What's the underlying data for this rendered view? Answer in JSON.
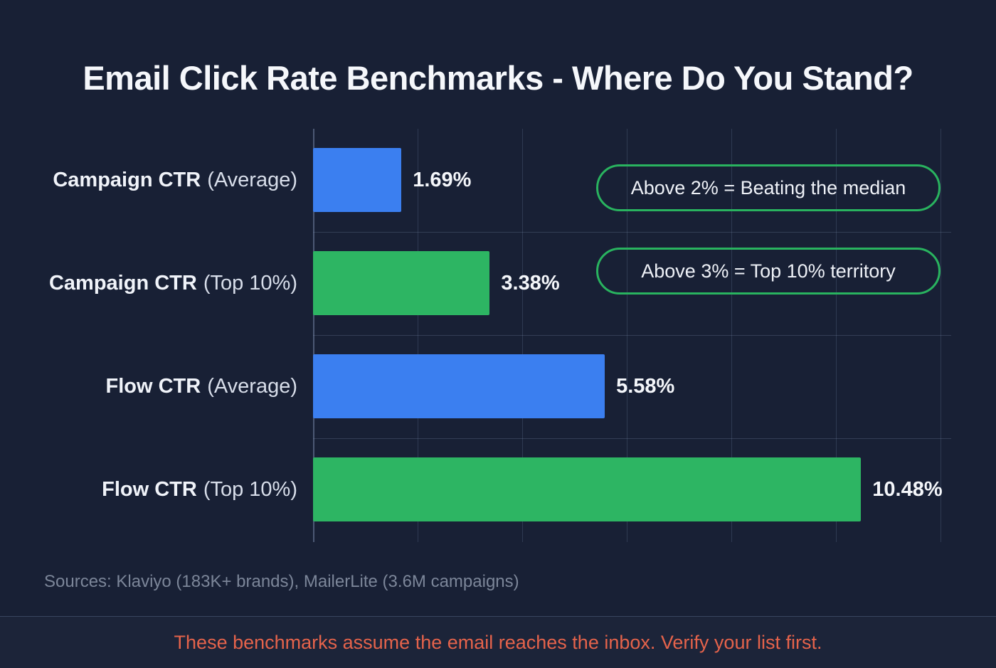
{
  "title": "Email Click Rate Benchmarks - Where Do You Stand?",
  "chart_data": {
    "type": "bar",
    "orientation": "horizontal",
    "title": "Email Click Rate Benchmarks - Where Do You Stand?",
    "categories": [
      "Campaign CTR (Average)",
      "Campaign CTR (Top 10%)",
      "Flow CTR (Average)",
      "Flow CTR (Top 10%)"
    ],
    "values": [
      1.69,
      3.38,
      5.58,
      10.48
    ],
    "value_labels": [
      "1.69%",
      "3.38%",
      "5.58%",
      "10.48%"
    ],
    "bar_colors": [
      "#3b7ff0",
      "#2db563",
      "#3b7ff0",
      "#2db563"
    ],
    "xlabel": "",
    "ylabel": "",
    "xlim": [
      0,
      12
    ],
    "gridline_step": 2,
    "grid": "vertical-gridlines-on",
    "legend": "none",
    "annotations": [
      "Above 2% = Beating the median",
      "Above 3% = Top 10% territory"
    ]
  },
  "rows": [
    {
      "label_strong": "Campaign CTR",
      "label_light": "(Average)",
      "value": "1.69%"
    },
    {
      "label_strong": "Campaign CTR",
      "label_light": "(Top 10%)",
      "value": "3.38%"
    },
    {
      "label_strong": "Flow CTR",
      "label_light": "(Average)",
      "value": "5.58%"
    },
    {
      "label_strong": "Flow CTR",
      "label_light": "(Top 10%)",
      "value": "10.48%"
    }
  ],
  "callouts": [
    {
      "text": "Above 2% = Beating the median"
    },
    {
      "text": "Above 3% = Top 10% territory"
    }
  ],
  "sources": "Sources: Klaviyo (183K+ brands), MailerLite (3.6M campaigns)",
  "footer_note": "These benchmarks assume the email reaches the inbox. Verify your list first.",
  "colors": {
    "background": "#182035",
    "bar_blue": "#3b7ff0",
    "bar_green": "#2db563",
    "callout_border": "#29b35f",
    "footer_text": "#e5634b",
    "footer_background": "#1c2439",
    "sources_text": "#7c8699",
    "gridline": "#3a455c"
  }
}
